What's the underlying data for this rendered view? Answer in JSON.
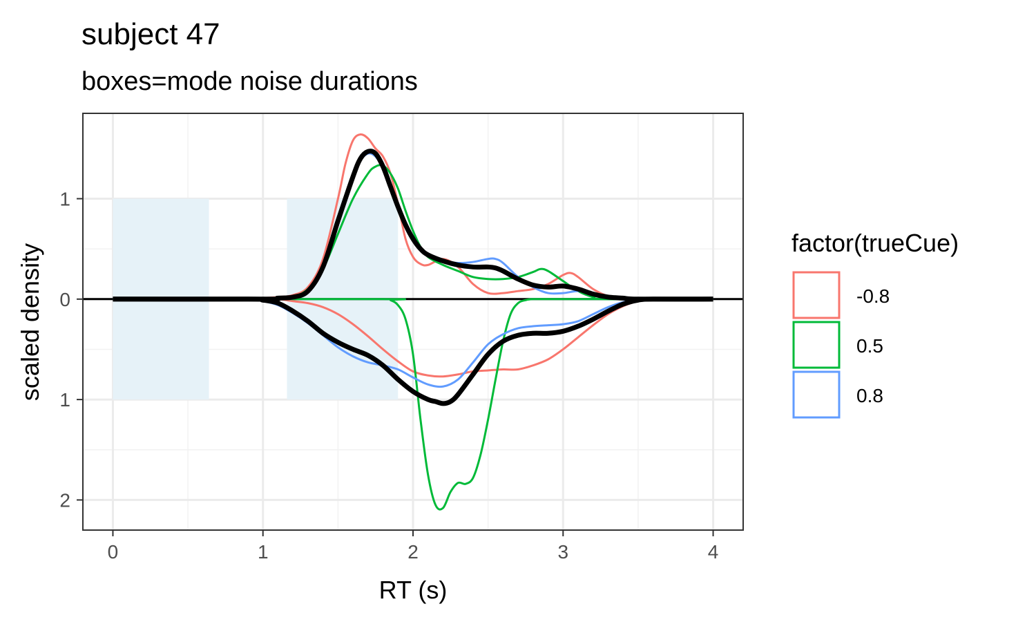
{
  "chart_data": {
    "type": "line",
    "title": "subject 47",
    "subtitle": "boxes=mode noise durations",
    "xlabel": "RT (s)",
    "ylabel": "scaled density",
    "xlim": [
      -0.2,
      4.2
    ],
    "ylim": [
      -2.3,
      1.85
    ],
    "x_ticks": [
      0,
      1,
      2,
      3,
      4
    ],
    "x_tick_labels": [
      "0",
      "1",
      "2",
      "3",
      "4"
    ],
    "y_ticks": [
      1,
      0,
      -1,
      -2
    ],
    "y_tick_labels": [
      "1",
      "0",
      "1",
      "2"
    ],
    "grid": true,
    "zero_line": true,
    "boxes": [
      {
        "x0": 0.0,
        "x1": 0.64,
        "y0": -1,
        "y1": 1,
        "color": "#e6f2f8"
      },
      {
        "x0": 1.16,
        "x1": 1.9,
        "y0": -1,
        "y1": 1,
        "color": "#e6f2f8"
      }
    ],
    "legend": {
      "title": "factor(trueCue)",
      "position": "right",
      "entries": [
        {
          "label": "-0.8",
          "color": "#F8766D"
        },
        {
          "label": "0.5",
          "color": "#00BA38"
        },
        {
          "label": "0.8",
          "color": "#619CFF"
        }
      ]
    },
    "series": [
      {
        "group": "-0.8",
        "part": "upper",
        "color": "#F8766D",
        "width": 3,
        "x": [
          0,
          0.9,
          1.0,
          1.1,
          1.2,
          1.3,
          1.4,
          1.5,
          1.55,
          1.6,
          1.65,
          1.7,
          1.75,
          1.8,
          1.85,
          1.9,
          1.95,
          2.0,
          2.05,
          2.1,
          2.2,
          2.3,
          2.4,
          2.5,
          2.6,
          2.7,
          2.8,
          2.9,
          3.0,
          3.05,
          3.1,
          3.2,
          3.3,
          3.4,
          3.5,
          4.0
        ],
        "y": [
          0,
          0,
          0.01,
          0.02,
          0.04,
          0.12,
          0.4,
          1.0,
          1.35,
          1.58,
          1.64,
          1.6,
          1.5,
          1.42,
          1.25,
          0.95,
          0.6,
          0.42,
          0.35,
          0.34,
          0.4,
          0.32,
          0.15,
          0.06,
          0.06,
          0.08,
          0.1,
          0.15,
          0.24,
          0.26,
          0.22,
          0.1,
          0.03,
          0.01,
          0,
          0
        ]
      },
      {
        "group": "-0.8",
        "part": "lower",
        "color": "#F8766D",
        "width": 3,
        "x": [
          0,
          0.9,
          1.0,
          1.1,
          1.2,
          1.3,
          1.4,
          1.5,
          1.6,
          1.7,
          1.8,
          1.9,
          2.0,
          2.1,
          2.2,
          2.3,
          2.4,
          2.5,
          2.6,
          2.7,
          2.8,
          2.9,
          3.0,
          3.1,
          3.2,
          3.3,
          3.4,
          3.5,
          3.6,
          4.0
        ],
        "y": [
          0,
          0,
          0,
          0,
          -0.02,
          -0.04,
          -0.08,
          -0.15,
          -0.25,
          -0.37,
          -0.5,
          -0.62,
          -0.72,
          -0.76,
          -0.77,
          -0.75,
          -0.72,
          -0.71,
          -0.7,
          -0.7,
          -0.66,
          -0.6,
          -0.5,
          -0.38,
          -0.26,
          -0.15,
          -0.07,
          -0.02,
          0,
          0
        ]
      },
      {
        "group": "0.5",
        "part": "upper",
        "color": "#00BA38",
        "width": 3,
        "x": [
          0,
          1.1,
          1.2,
          1.3,
          1.4,
          1.5,
          1.6,
          1.7,
          1.75,
          1.8,
          1.85,
          1.9,
          1.95,
          2.0,
          2.05,
          2.1,
          2.2,
          2.3,
          2.4,
          2.5,
          2.6,
          2.7,
          2.8,
          2.85,
          2.9,
          3.0,
          3.1,
          3.2,
          3.3,
          4.0
        ],
        "y": [
          0,
          0,
          0.02,
          0.1,
          0.3,
          0.65,
          1.0,
          1.25,
          1.32,
          1.33,
          1.25,
          1.1,
          0.88,
          0.68,
          0.52,
          0.42,
          0.34,
          0.28,
          0.22,
          0.2,
          0.2,
          0.22,
          0.27,
          0.3,
          0.28,
          0.18,
          0.08,
          0.02,
          0,
          0
        ]
      },
      {
        "group": "0.5",
        "part": "lower",
        "color": "#00BA38",
        "width": 3,
        "x": [
          0,
          1.8,
          1.85,
          1.9,
          1.95,
          2.0,
          2.05,
          2.1,
          2.15,
          2.2,
          2.25,
          2.3,
          2.35,
          2.4,
          2.45,
          2.5,
          2.55,
          2.6,
          2.65,
          2.7,
          2.75,
          2.8,
          2.9,
          4.0
        ],
        "y": [
          0,
          0,
          -0.01,
          -0.06,
          -0.2,
          -0.55,
          -1.2,
          -1.75,
          -2.05,
          -2.08,
          -1.92,
          -1.83,
          -1.84,
          -1.78,
          -1.55,
          -1.2,
          -0.8,
          -0.42,
          -0.15,
          -0.04,
          -0.01,
          0,
          0,
          0
        ]
      },
      {
        "group": "0.8",
        "part": "upper",
        "color": "#619CFF",
        "width": 3,
        "x": [
          0,
          1.0,
          1.1,
          1.2,
          1.3,
          1.4,
          1.5,
          1.6,
          1.65,
          1.7,
          1.75,
          1.8,
          1.85,
          1.9,
          1.95,
          2.0,
          2.05,
          2.1,
          2.2,
          2.3,
          2.4,
          2.5,
          2.55,
          2.6,
          2.7,
          2.8,
          2.9,
          3.0,
          3.1,
          3.2,
          3.3,
          3.4,
          3.5,
          4.0
        ],
        "y": [
          0,
          0,
          0.01,
          0.02,
          0.08,
          0.3,
          0.75,
          1.2,
          1.38,
          1.45,
          1.42,
          1.3,
          1.1,
          0.9,
          0.72,
          0.6,
          0.5,
          0.44,
          0.38,
          0.36,
          0.37,
          0.4,
          0.4,
          0.36,
          0.22,
          0.12,
          0.06,
          0.06,
          0.08,
          0.06,
          0.03,
          0.01,
          0,
          0
        ]
      },
      {
        "group": "0.8",
        "part": "lower",
        "color": "#619CFF",
        "width": 3,
        "x": [
          0,
          0.9,
          1.0,
          1.1,
          1.2,
          1.3,
          1.4,
          1.5,
          1.6,
          1.7,
          1.8,
          1.9,
          2.0,
          2.1,
          2.2,
          2.3,
          2.4,
          2.5,
          2.6,
          2.7,
          2.8,
          2.9,
          3.0,
          3.1,
          3.2,
          3.3,
          3.4,
          3.5,
          3.6,
          4.0
        ],
        "y": [
          0,
          0,
          -0.02,
          -0.06,
          -0.14,
          -0.24,
          -0.36,
          -0.48,
          -0.57,
          -0.63,
          -0.66,
          -0.7,
          -0.78,
          -0.85,
          -0.87,
          -0.8,
          -0.63,
          -0.45,
          -0.35,
          -0.29,
          -0.27,
          -0.26,
          -0.25,
          -0.22,
          -0.15,
          -0.08,
          -0.03,
          -0.01,
          0,
          0
        ]
      },
      {
        "group": "all",
        "part": "upper",
        "color": "#000000",
        "width": 7,
        "x": [
          0,
          1.0,
          1.1,
          1.2,
          1.3,
          1.4,
          1.5,
          1.6,
          1.65,
          1.7,
          1.75,
          1.8,
          1.85,
          1.9,
          1.95,
          2.0,
          2.05,
          2.1,
          2.2,
          2.3,
          2.4,
          2.5,
          2.55,
          2.6,
          2.7,
          2.8,
          2.9,
          3.0,
          3.1,
          3.2,
          3.3,
          3.4,
          3.5,
          4.0
        ],
        "y": [
          0,
          0,
          0.01,
          0.02,
          0.08,
          0.32,
          0.78,
          1.22,
          1.4,
          1.47,
          1.45,
          1.32,
          1.12,
          0.92,
          0.74,
          0.6,
          0.5,
          0.44,
          0.38,
          0.34,
          0.32,
          0.32,
          0.31,
          0.28,
          0.2,
          0.14,
          0.12,
          0.13,
          0.1,
          0.05,
          0.02,
          0.01,
          0,
          0
        ]
      },
      {
        "group": "all",
        "part": "lower",
        "color": "#000000",
        "width": 7,
        "x": [
          0,
          0.9,
          1.0,
          1.1,
          1.2,
          1.3,
          1.4,
          1.5,
          1.6,
          1.7,
          1.8,
          1.9,
          2.0,
          2.1,
          2.15,
          2.2,
          2.25,
          2.3,
          2.4,
          2.5,
          2.6,
          2.7,
          2.8,
          2.9,
          3.0,
          3.1,
          3.2,
          3.3,
          3.4,
          3.5,
          3.6,
          4.0
        ],
        "y": [
          0,
          0,
          -0.01,
          -0.04,
          -0.12,
          -0.22,
          -0.34,
          -0.43,
          -0.5,
          -0.56,
          -0.66,
          -0.8,
          -0.92,
          -1.0,
          -1.02,
          -1.04,
          -1.02,
          -0.95,
          -0.75,
          -0.55,
          -0.42,
          -0.36,
          -0.34,
          -0.34,
          -0.32,
          -0.27,
          -0.2,
          -0.12,
          -0.05,
          -0.01,
          0,
          0
        ]
      }
    ]
  }
}
